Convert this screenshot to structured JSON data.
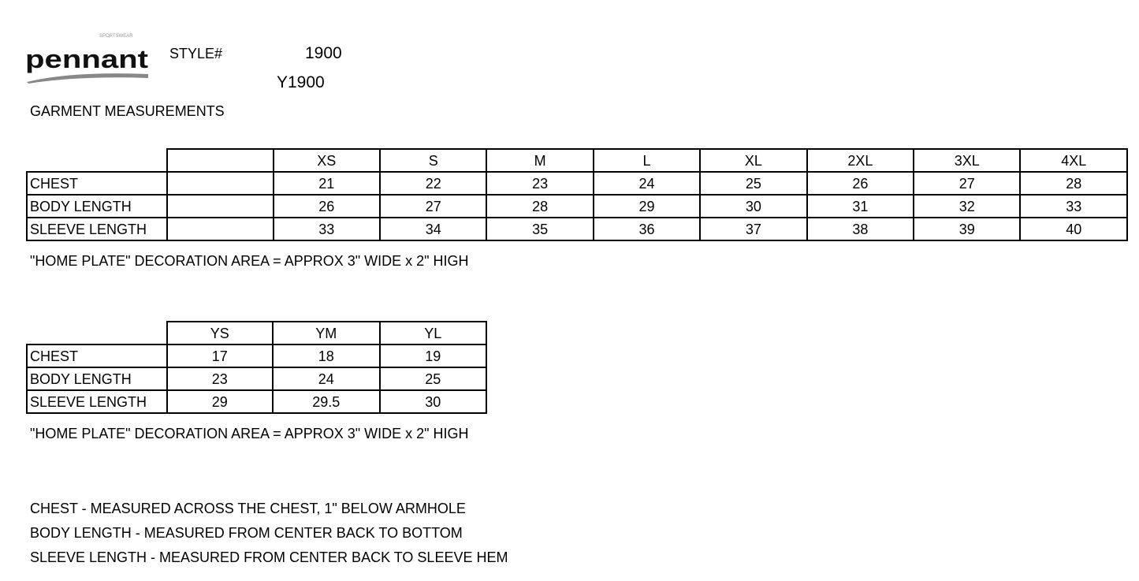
{
  "logo": {
    "text": "pennant",
    "subtext": "SPORTSWEAR"
  },
  "header": {
    "style_label": "STYLE#",
    "style_numbers": [
      "1900",
      "Y1900"
    ],
    "title": "GARMENT MEASUREMENTS"
  },
  "adult_table": {
    "columns": [
      "XS",
      "S",
      "M",
      "L",
      "XL",
      "2XL",
      "3XL",
      "4XL"
    ],
    "rows": [
      {
        "label": "CHEST",
        "values": [
          "21",
          "22",
          "23",
          "24",
          "25",
          "26",
          "27",
          "28"
        ]
      },
      {
        "label": "BODY LENGTH",
        "values": [
          "26",
          "27",
          "28",
          "29",
          "30",
          "31",
          "32",
          "33"
        ]
      },
      {
        "label": "SLEEVE LENGTH",
        "values": [
          "33",
          "34",
          "35",
          "36",
          "37",
          "38",
          "39",
          "40"
        ]
      }
    ],
    "note": "\"HOME PLATE\" DECORATION AREA  = APPROX 3\" WIDE x 2\" HIGH"
  },
  "youth_table": {
    "columns": [
      "YS",
      "YM",
      "YL"
    ],
    "rows": [
      {
        "label": "CHEST",
        "values": [
          "17",
          "18",
          "19"
        ]
      },
      {
        "label": "BODY LENGTH",
        "values": [
          "23",
          "24",
          "25"
        ]
      },
      {
        "label": "SLEEVE LENGTH",
        "values": [
          "29",
          "29.5",
          "30"
        ]
      }
    ],
    "note": "\"HOME PLATE\" DECORATION AREA  = APPROX 3\" WIDE x 2\" HIGH"
  },
  "definitions": [
    "CHEST - MEASURED ACROSS THE CHEST, 1\" BELOW ARMHOLE",
    "BODY LENGTH - MEASURED FROM CENTER BACK TO BOTTOM",
    "SLEEVE LENGTH - MEASURED FROM CENTER BACK TO SLEEVE HEM"
  ]
}
